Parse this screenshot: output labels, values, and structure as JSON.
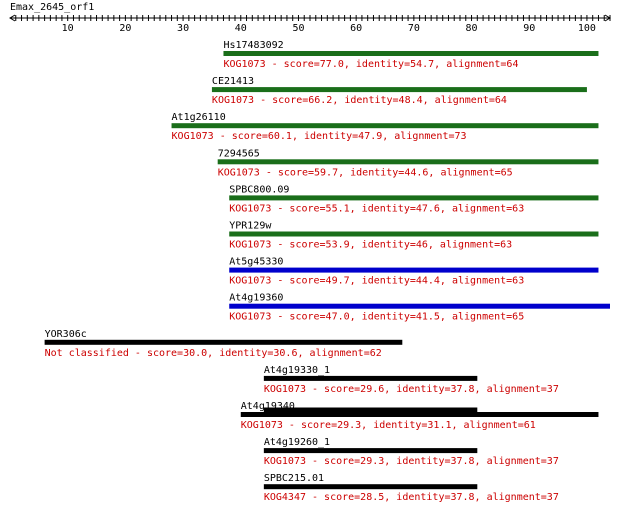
{
  "query": {
    "name": "Emax_2645_orf1",
    "axis_start": 0,
    "axis_end": 104,
    "tick_labels": [
      10,
      20,
      30,
      40,
      50,
      60,
      70,
      80,
      90,
      100
    ]
  },
  "colors": {
    "green": "#1a6e1a",
    "blue": "#0000cc",
    "black": "#000000",
    "red_text": "#cc0000"
  },
  "hits": [
    {
      "name": "Hs17483092",
      "desc": "KOG1073 - score=77.0, identity=54.7, alignment=64",
      "start": 37,
      "end": 102,
      "color": "green"
    },
    {
      "name": "CE21413",
      "desc": "KOG1073 - score=66.2, identity=48.4, alignment=64",
      "start": 35,
      "end": 100,
      "color": "green"
    },
    {
      "name": "At1g26110",
      "desc": "KOG1073 - score=60.1, identity=47.9, alignment=73",
      "start": 28,
      "end": 102,
      "color": "green"
    },
    {
      "name": "7294565",
      "desc": "KOG1073 - score=59.7, identity=44.6, alignment=65",
      "start": 36,
      "end": 102,
      "color": "green"
    },
    {
      "name": "SPBC800.09",
      "desc": "KOG1073 - score=55.1, identity=47.6, alignment=63",
      "start": 38,
      "end": 102,
      "color": "green"
    },
    {
      "name": "YPR129w",
      "desc": "KOG1073 - score=53.9, identity=46, alignment=63",
      "start": 38,
      "end": 102,
      "color": "green"
    },
    {
      "name": "At5g45330",
      "desc": "KOG1073 - score=49.7, identity=44.4, alignment=63",
      "start": 38,
      "end": 102,
      "color": "blue"
    },
    {
      "name": "At4g19360",
      "desc": "KOG1073 - score=47.0, identity=41.5, alignment=65",
      "start": 38,
      "end": 104,
      "color": "blue"
    },
    {
      "name": "YOR306c",
      "desc": "Not classified - score=30.0, identity=30.6, alignment=62",
      "start": 6,
      "end": 68,
      "color": "black"
    },
    {
      "name": "At4g19330_1",
      "desc": "KOG1073 - score=29.6, identity=37.8, alignment=37",
      "start": 44,
      "end": 81,
      "color": "black"
    },
    {
      "name": "At4g19340",
      "desc": "KOG1073 - score=29.3, identity=31.1, alignment=61",
      "start": 40,
      "end": 102,
      "color": "black",
      "inner_start": 44,
      "inner_end": 81
    },
    {
      "name": "At4g19260_1",
      "desc": "KOG1073 - score=29.3, identity=37.8, alignment=37",
      "start": 44,
      "end": 81,
      "color": "black"
    },
    {
      "name": "SPBC215.01",
      "desc": "KOG4347 - score=28.5, identity=37.8, alignment=37",
      "start": 44,
      "end": 81,
      "color": "black"
    }
  ]
}
